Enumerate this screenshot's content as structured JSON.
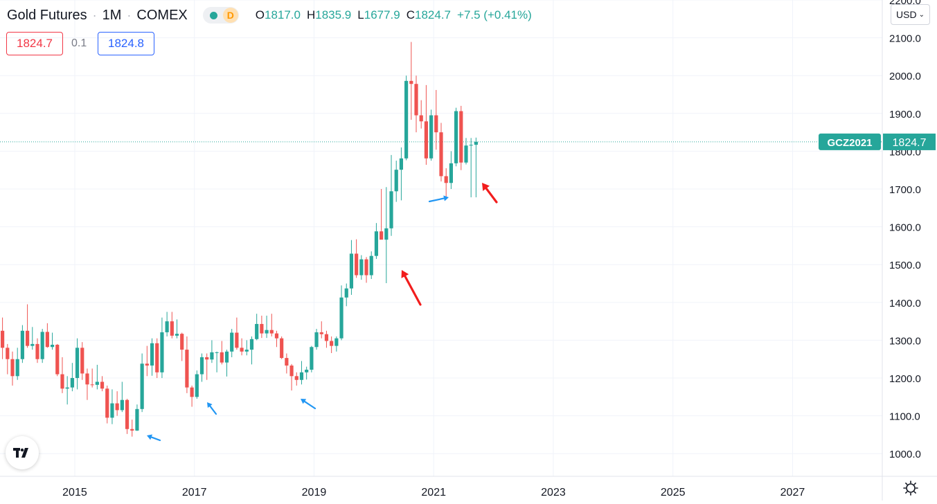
{
  "header": {
    "symbol": "Gold Futures",
    "interval": "1M",
    "exchange": "COMEX",
    "delay_badge": "D",
    "ohlc": {
      "o_label": "O",
      "o": "1817.0",
      "h_label": "H",
      "h": "1835.9",
      "l_label": "L",
      "l": "1677.9",
      "c_label": "C",
      "c": "1824.7",
      "change": "+7.5 (+0.41%)"
    }
  },
  "quote": {
    "bid": "1824.7",
    "spread": "0.1",
    "ask": "1824.8"
  },
  "currency": {
    "label": "USD"
  },
  "price_tag": {
    "ticker": "GCZ2021",
    "price": "1824.7"
  },
  "colors": {
    "up": "#26a69a",
    "down": "#ef5350",
    "arrow_blue": "#2196f3",
    "arrow_red": "#f21d1d",
    "grid": "#f0f3fa"
  },
  "icons": {
    "logo": "tradingview-logo-icon",
    "settings": "gear-icon",
    "dropdown": "chevron-down-icon"
  },
  "chart_data": {
    "type": "candlestick",
    "timeframe": "1M",
    "ylim": [
      940,
      2200
    ],
    "y_ticks": [
      "1000.0",
      "1100.0",
      "1200.0",
      "1300.0",
      "1400.0",
      "1500.0",
      "1600.0",
      "1700.0",
      "1800.0",
      "1900.0",
      "2000.0",
      "2100.0",
      "2200.0"
    ],
    "x_ticks": [
      "2015",
      "2017",
      "2019",
      "2021",
      "2023",
      "2025",
      "2027"
    ],
    "x_range": [
      "2013-10",
      "2028-07"
    ],
    "last_price": 1824.7,
    "candles": [
      [
        "2013-10",
        1325,
        1360,
        1250,
        1280
      ],
      [
        "2013-11",
        1280,
        1290,
        1210,
        1250
      ],
      [
        "2013-12",
        1250,
        1270,
        1180,
        1205
      ],
      [
        "2014-01",
        1205,
        1280,
        1195,
        1250
      ],
      [
        "2014-02",
        1250,
        1340,
        1240,
        1325
      ],
      [
        "2014-03",
        1325,
        1395,
        1280,
        1285
      ],
      [
        "2014-04",
        1285,
        1335,
        1275,
        1290
      ],
      [
        "2014-05",
        1290,
        1305,
        1240,
        1250
      ],
      [
        "2014-06",
        1250,
        1330,
        1240,
        1322
      ],
      [
        "2014-07",
        1322,
        1345,
        1280,
        1282
      ],
      [
        "2014-08",
        1282,
        1320,
        1275,
        1288
      ],
      [
        "2014-09",
        1288,
        1290,
        1205,
        1210
      ],
      [
        "2014-10",
        1210,
        1255,
        1160,
        1172
      ],
      [
        "2014-11",
        1172,
        1205,
        1130,
        1175
      ],
      [
        "2014-12",
        1175,
        1240,
        1165,
        1200
      ],
      [
        "2015-01",
        1200,
        1305,
        1170,
        1280
      ],
      [
        "2015-02",
        1280,
        1295,
        1195,
        1212
      ],
      [
        "2015-03",
        1212,
        1225,
        1142,
        1183
      ],
      [
        "2015-04",
        1183,
        1225,
        1175,
        1182
      ],
      [
        "2015-05",
        1182,
        1235,
        1170,
        1190
      ],
      [
        "2015-06",
        1190,
        1205,
        1165,
        1172
      ],
      [
        "2015-07",
        1172,
        1180,
        1080,
        1095
      ],
      [
        "2015-08",
        1095,
        1170,
        1078,
        1133
      ],
      [
        "2015-09",
        1133,
        1165,
        1100,
        1115
      ],
      [
        "2015-10",
        1115,
        1190,
        1110,
        1142
      ],
      [
        "2015-11",
        1142,
        1145,
        1052,
        1065
      ],
      [
        "2015-12",
        1065,
        1090,
        1045,
        1061
      ],
      [
        "2016-01",
        1061,
        1130,
        1060,
        1118
      ],
      [
        "2016-02",
        1118,
        1265,
        1110,
        1238
      ],
      [
        "2016-03",
        1238,
        1285,
        1205,
        1233
      ],
      [
        "2016-04",
        1233,
        1305,
        1206,
        1292
      ],
      [
        "2016-05",
        1292,
        1305,
        1200,
        1215
      ],
      [
        "2016-06",
        1215,
        1360,
        1200,
        1321
      ],
      [
        "2016-07",
        1321,
        1375,
        1310,
        1350
      ],
      [
        "2016-08",
        1350,
        1375,
        1305,
        1312
      ],
      [
        "2016-09",
        1312,
        1355,
        1305,
        1317
      ],
      [
        "2016-10",
        1317,
        1320,
        1245,
        1275
      ],
      [
        "2016-11",
        1275,
        1310,
        1160,
        1175
      ],
      [
        "2016-12",
        1175,
        1180,
        1124,
        1150
      ],
      [
        "2017-01",
        1150,
        1220,
        1145,
        1210
      ],
      [
        "2017-02",
        1210,
        1265,
        1190,
        1255
      ],
      [
        "2017-03",
        1255,
        1265,
        1195,
        1249
      ],
      [
        "2017-04",
        1249,
        1300,
        1240,
        1268
      ],
      [
        "2017-05",
        1268,
        1270,
        1215,
        1268
      ],
      [
        "2017-06",
        1268,
        1298,
        1236,
        1241
      ],
      [
        "2017-07",
        1241,
        1275,
        1204,
        1270
      ],
      [
        "2017-08",
        1270,
        1330,
        1255,
        1320
      ],
      [
        "2017-09",
        1320,
        1360,
        1275,
        1280
      ],
      [
        "2017-10",
        1280,
        1305,
        1260,
        1270
      ],
      [
        "2017-11",
        1270,
        1300,
        1260,
        1275
      ],
      [
        "2017-12",
        1275,
        1310,
        1236,
        1303
      ],
      [
        "2018-01",
        1303,
        1370,
        1300,
        1343
      ],
      [
        "2018-02",
        1343,
        1365,
        1306,
        1318
      ],
      [
        "2018-03",
        1318,
        1365,
        1306,
        1327
      ],
      [
        "2018-04",
        1327,
        1370,
        1310,
        1318
      ],
      [
        "2018-05",
        1318,
        1325,
        1282,
        1305
      ],
      [
        "2018-06",
        1305,
        1310,
        1250,
        1253
      ],
      [
        "2018-07",
        1253,
        1265,
        1212,
        1233
      ],
      [
        "2018-08",
        1233,
        1237,
        1167,
        1205
      ],
      [
        "2018-09",
        1205,
        1215,
        1180,
        1195
      ],
      [
        "2018-10",
        1195,
        1245,
        1183,
        1215
      ],
      [
        "2018-11",
        1215,
        1230,
        1196,
        1222
      ],
      [
        "2018-12",
        1222,
        1285,
        1215,
        1282
      ],
      [
        "2019-01",
        1282,
        1330,
        1275,
        1321
      ],
      [
        "2019-02",
        1321,
        1350,
        1305,
        1316
      ],
      [
        "2019-03",
        1316,
        1325,
        1280,
        1298
      ],
      [
        "2019-04",
        1298,
        1310,
        1266,
        1285
      ],
      [
        "2019-05",
        1285,
        1310,
        1270,
        1305
      ],
      [
        "2019-06",
        1305,
        1445,
        1300,
        1413
      ],
      [
        "2019-07",
        1413,
        1450,
        1390,
        1437
      ],
      [
        "2019-08",
        1437,
        1565,
        1420,
        1529
      ],
      [
        "2019-09",
        1529,
        1567,
        1465,
        1472
      ],
      [
        "2019-10",
        1472,
        1525,
        1460,
        1514
      ],
      [
        "2019-11",
        1514,
        1520,
        1452,
        1472
      ],
      [
        "2019-12",
        1472,
        1535,
        1462,
        1523
      ],
      [
        "2020-01",
        1523,
        1610,
        1515,
        1588
      ],
      [
        "2020-02",
        1588,
        1700,
        1578,
        1566
      ],
      [
        "2020-03",
        1566,
        1705,
        1451,
        1596
      ],
      [
        "2020-04",
        1596,
        1790,
        1576,
        1694
      ],
      [
        "2020-05",
        1694,
        1775,
        1666,
        1751
      ],
      [
        "2020-06",
        1751,
        1810,
        1670,
        1781
      ],
      [
        "2020-07",
        1781,
        2000,
        1776,
        1986
      ],
      [
        "2020-08",
        1986,
        2089,
        1883,
        1978
      ],
      [
        "2020-09",
        1978,
        2000,
        1850,
        1895
      ],
      [
        "2020-10",
        1895,
        1935,
        1860,
        1879
      ],
      [
        "2020-11",
        1879,
        1975,
        1764,
        1781
      ],
      [
        "2020-12",
        1781,
        1910,
        1775,
        1895
      ],
      [
        "2021-01",
        1895,
        1962,
        1804,
        1850
      ],
      [
        "2021-02",
        1850,
        1875,
        1720,
        1734
      ],
      [
        "2021-03",
        1734,
        1755,
        1677,
        1716
      ],
      [
        "2021-04",
        1716,
        1800,
        1700,
        1768
      ],
      [
        "2021-05",
        1768,
        1915,
        1760,
        1906
      ],
      [
        "2021-06",
        1906,
        1920,
        1750,
        1770
      ],
      [
        "2021-07",
        1770,
        1835,
        1765,
        1815
      ],
      [
        "2021-08",
        1815,
        1835,
        1678,
        1817
      ],
      [
        "2021-09",
        1817,
        1836,
        1678,
        1825
      ]
    ]
  }
}
